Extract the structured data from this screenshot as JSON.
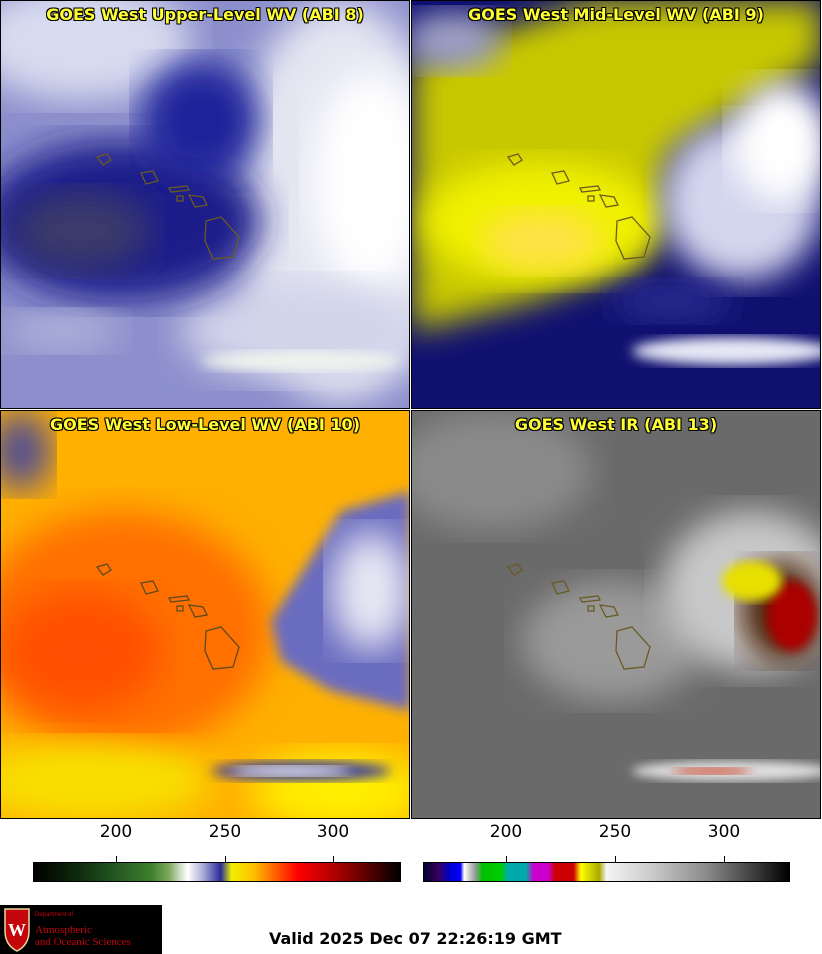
{
  "panels": [
    {
      "title": "GOES West Upper-Level WV (ABI 8)"
    },
    {
      "title": "GOES West Mid-Level WV (ABI 9)"
    },
    {
      "title": "GOES West Low-Level WV (ABI 10)"
    },
    {
      "title": "GOES West IR (ABI 13)"
    }
  ],
  "colorbars": {
    "left": {
      "ticks": [
        "200",
        "250",
        "300"
      ]
    },
    "right": {
      "ticks": [
        "200",
        "250",
        "300"
      ]
    }
  },
  "logo": {
    "line1": "Department of",
    "line2": "Atmospheric",
    "line3": "and Oceanic Sciences",
    "crest_letter": "W"
  },
  "valid_time": "Valid 2025 Dec 07 22:26:19 GMT",
  "colors": {
    "title_text": "#ffff33",
    "logo_red": "#c5050c"
  }
}
